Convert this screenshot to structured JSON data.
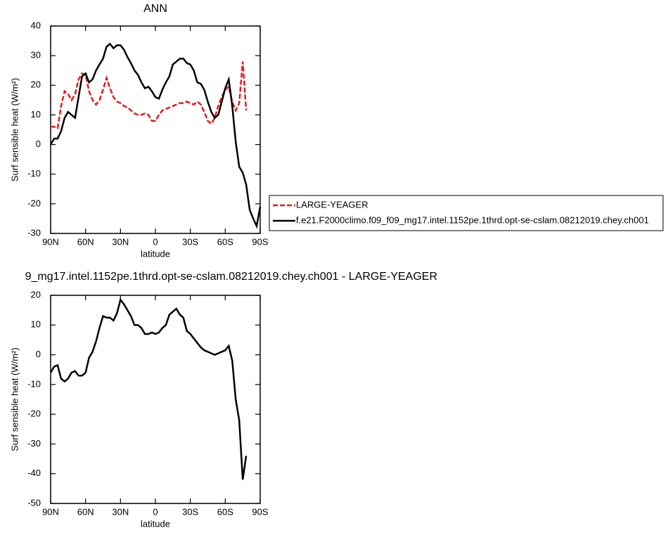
{
  "chart_data": [
    {
      "type": "line",
      "title": "ANN",
      "xlabel": "latitude",
      "ylabel": "Surf sensible heat (W/m²)",
      "x": [
        90,
        87,
        84,
        81,
        78,
        75,
        72,
        69,
        66,
        63,
        60,
        57,
        54,
        51,
        48,
        45,
        42,
        39,
        36,
        33,
        30,
        27,
        24,
        21,
        18,
        15,
        12,
        9,
        6,
        3,
        0,
        -3,
        -6,
        -9,
        -12,
        -15,
        -18,
        -21,
        -24,
        -27,
        -30,
        -33,
        -36,
        -39,
        -42,
        -45,
        -48,
        -51,
        -54,
        -57,
        -60,
        -63,
        -66,
        -69,
        -72,
        -75,
        -78,
        -81,
        -84,
        -87,
        -90
      ],
      "series": [
        {
          "name": "LARGE-YEAGER",
          "color": "#e41a1c",
          "dash": true,
          "values": [
            6,
            6,
            5.5,
            13,
            18,
            17,
            15,
            17,
            22,
            24,
            23.5,
            18,
            15,
            13.5,
            15,
            18.5,
            22.5,
            19,
            16,
            14.5,
            14,
            13,
            12.5,
            11.5,
            10.5,
            10,
            10,
            10.5,
            10,
            8,
            8,
            10,
            11.5,
            12,
            12.5,
            13,
            13.5,
            14,
            14,
            14.5,
            14,
            13.5,
            14.5,
            13.5,
            11,
            8,
            7,
            9,
            13,
            16,
            18.5,
            19.5,
            14.5,
            11.5,
            14,
            28,
            11.5,
            null,
            null,
            null,
            null
          ]
        },
        {
          "name": "f.e21.F2000climo.f09_f09_mg17.intel.1152pe.1thrd.opt-se-cslam.08212019.chey.ch001",
          "color": "#000000",
          "dash": false,
          "values": [
            0,
            2,
            2,
            4.5,
            9,
            11,
            10,
            9,
            16,
            23,
            24,
            21,
            22,
            25,
            27,
            29,
            33,
            34,
            32.5,
            33.5,
            33.5,
            32,
            29.5,
            27.5,
            25,
            23.5,
            21,
            19,
            19.5,
            18,
            16,
            15.5,
            18.5,
            21,
            23,
            27,
            28,
            29,
            29,
            27.5,
            27,
            25,
            21,
            20.5,
            18.5,
            14.5,
            11,
            9,
            10,
            14.5,
            19,
            22,
            13,
            1,
            -7.5,
            -9.5,
            -13.5,
            -22,
            -25,
            -27.5,
            -21
          ]
        }
      ],
      "xlim": [
        90,
        -90
      ],
      "xticks": [
        {
          "value": 90,
          "label": "90N"
        },
        {
          "value": 60,
          "label": "60N"
        },
        {
          "value": 30,
          "label": "30N"
        },
        0,
        {
          "value": -30,
          "label": "30S"
        },
        {
          "value": -60,
          "label": "60S"
        },
        {
          "value": -90,
          "label": "90S"
        }
      ],
      "ylim": [
        -30,
        40
      ],
      "yticks": [
        -30,
        -20,
        -10,
        0,
        10,
        20,
        30,
        40
      ],
      "legend": true
    },
    {
      "type": "line",
      "title": "9_mg17.intel.1152pe.1thrd.opt-se-cslam.08212019.chey.ch001 - LARGE-YEAGER",
      "xlabel": "latitude",
      "ylabel": "Surf sensible heat (W/m²)",
      "x": [
        90,
        87,
        84,
        81,
        78,
        75,
        72,
        69,
        66,
        63,
        60,
        57,
        54,
        51,
        48,
        45,
        42,
        39,
        36,
        33,
        30,
        27,
        24,
        21,
        18,
        15,
        12,
        9,
        6,
        3,
        0,
        -3,
        -6,
        -9,
        -12,
        -15,
        -18,
        -21,
        -24,
        -27,
        -30,
        -33,
        -36,
        -39,
        -42,
        -45,
        -48,
        -51,
        -54,
        -57,
        -60,
        -63,
        -66,
        -69,
        -72,
        -75,
        -78,
        -81,
        -84,
        -87,
        -90
      ],
      "series": [
        {
          "color": "#000000",
          "dash": false,
          "values": [
            -6,
            -4,
            -3.5,
            -8,
            -9,
            -8,
            -6,
            -5.5,
            -7,
            -7,
            -6,
            -1,
            1,
            4.5,
            9,
            13,
            12.5,
            12.5,
            11.5,
            14,
            18.5,
            17,
            15,
            13,
            10,
            10,
            9,
            7,
            7,
            7.5,
            7,
            7.5,
            9,
            10,
            13.5,
            14.5,
            15.5,
            13.5,
            12.5,
            8,
            7,
            5.5,
            4,
            2.5,
            1.5,
            1,
            0.5,
            0,
            0.5,
            1,
            1.5,
            3,
            -2,
            -15,
            -22,
            -42,
            -34,
            null,
            null,
            null,
            null
          ]
        }
      ],
      "xlim": [
        90,
        -90
      ],
      "xticks": [
        {
          "value": 90,
          "label": "90N"
        },
        {
          "value": 60,
          "label": "60N"
        },
        {
          "value": 30,
          "label": "30N"
        },
        0,
        {
          "value": -30,
          "label": "30S"
        },
        {
          "value": -60,
          "label": "60S"
        },
        {
          "value": -90,
          "label": "90S"
        }
      ],
      "ylim": [
        -50,
        20
      ],
      "yticks": [
        -50,
        -40,
        -30,
        -20,
        -10,
        0,
        10,
        20
      ],
      "legend": false
    }
  ]
}
